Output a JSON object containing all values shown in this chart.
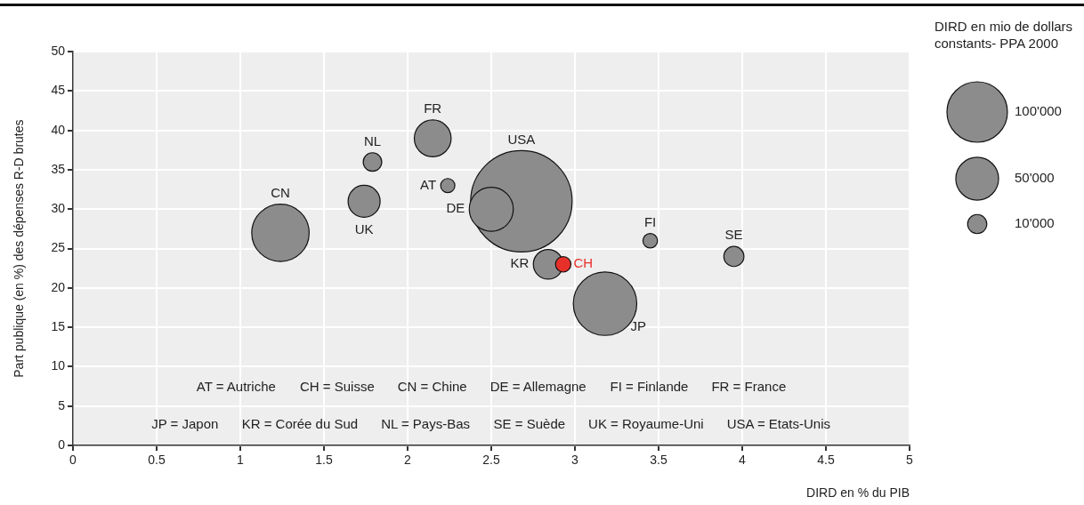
{
  "chart_data": {
    "type": "bubble",
    "xlabel": "DIRD en % du PIB",
    "ylabel": "Part publique (en %) des dépenses R-D brutes",
    "legend_title": "DIRD en mio de dollars constants- PPA 2000",
    "size_legend": [
      {
        "value": 100000,
        "label": "100'000"
      },
      {
        "value": 50000,
        "label": "50'000"
      },
      {
        "value": 10000,
        "label": "10'000"
      }
    ],
    "xlim": [
      0,
      5
    ],
    "xticks": [
      0,
      0.5,
      1,
      1.5,
      2,
      2.5,
      3,
      3.5,
      4,
      4.5,
      5
    ],
    "ylim": [
      0,
      50
    ],
    "yticks": [
      0,
      5,
      10,
      15,
      20,
      25,
      30,
      35,
      40,
      45,
      50
    ],
    "grid": true,
    "series": [
      {
        "name": "CN",
        "color": "#8c8c8c",
        "x": [
          1.24
        ],
        "values": [
          27
        ],
        "sizes": [
          90000
        ]
      },
      {
        "name": "UK",
        "color": "#8c8c8c",
        "x": [
          1.74
        ],
        "values": [
          31
        ],
        "sizes": [
          28000
        ]
      },
      {
        "name": "NL",
        "color": "#8c8c8c",
        "x": [
          1.79
        ],
        "values": [
          36
        ],
        "sizes": [
          9400
        ]
      },
      {
        "name": "FR",
        "color": "#8c8c8c",
        "x": [
          2.15
        ],
        "values": [
          39
        ],
        "sizes": [
          37000
        ]
      },
      {
        "name": "AT",
        "color": "#8c8c8c",
        "x": [
          2.24
        ],
        "values": [
          33
        ],
        "sizes": [
          5500
        ]
      },
      {
        "name": "USA",
        "color": "#8c8c8c",
        "x": [
          2.68
        ],
        "values": [
          31
        ],
        "sizes": [
          281000
        ]
      },
      {
        "name": "DE",
        "color": "#8c8c8c",
        "x": [
          2.5
        ],
        "values": [
          30
        ],
        "sizes": [
          53000
        ]
      },
      {
        "name": "KR",
        "color": "#8c8c8c",
        "x": [
          2.84
        ],
        "values": [
          23
        ],
        "sizes": [
          24000
        ]
      },
      {
        "name": "CH",
        "color": "#e8302a",
        "x": [
          2.93
        ],
        "values": [
          23
        ],
        "sizes": [
          6500
        ]
      },
      {
        "name": "JP",
        "color": "#8c8c8c",
        "x": [
          3.18
        ],
        "values": [
          18
        ],
        "sizes": [
          110000
        ]
      },
      {
        "name": "FI",
        "color": "#8c8c8c",
        "x": [
          3.45
        ],
        "values": [
          26
        ],
        "sizes": [
          5800
        ]
      },
      {
        "name": "SE",
        "color": "#8c8c8c",
        "x": [
          3.95
        ],
        "values": [
          24
        ],
        "sizes": [
          11000
        ]
      }
    ],
    "annotations": [
      "AT = Autriche",
      "CH = Suisse",
      "CN = Chine",
      "DE = Allemagne",
      "FI = Finlande",
      "FR = France",
      "JP = Japon",
      "KR = Corée du Sud",
      "NL = Pays-Bas",
      "SE = Suède",
      "UK = Royaume-Uni",
      "USA = Etats-Unis"
    ]
  }
}
